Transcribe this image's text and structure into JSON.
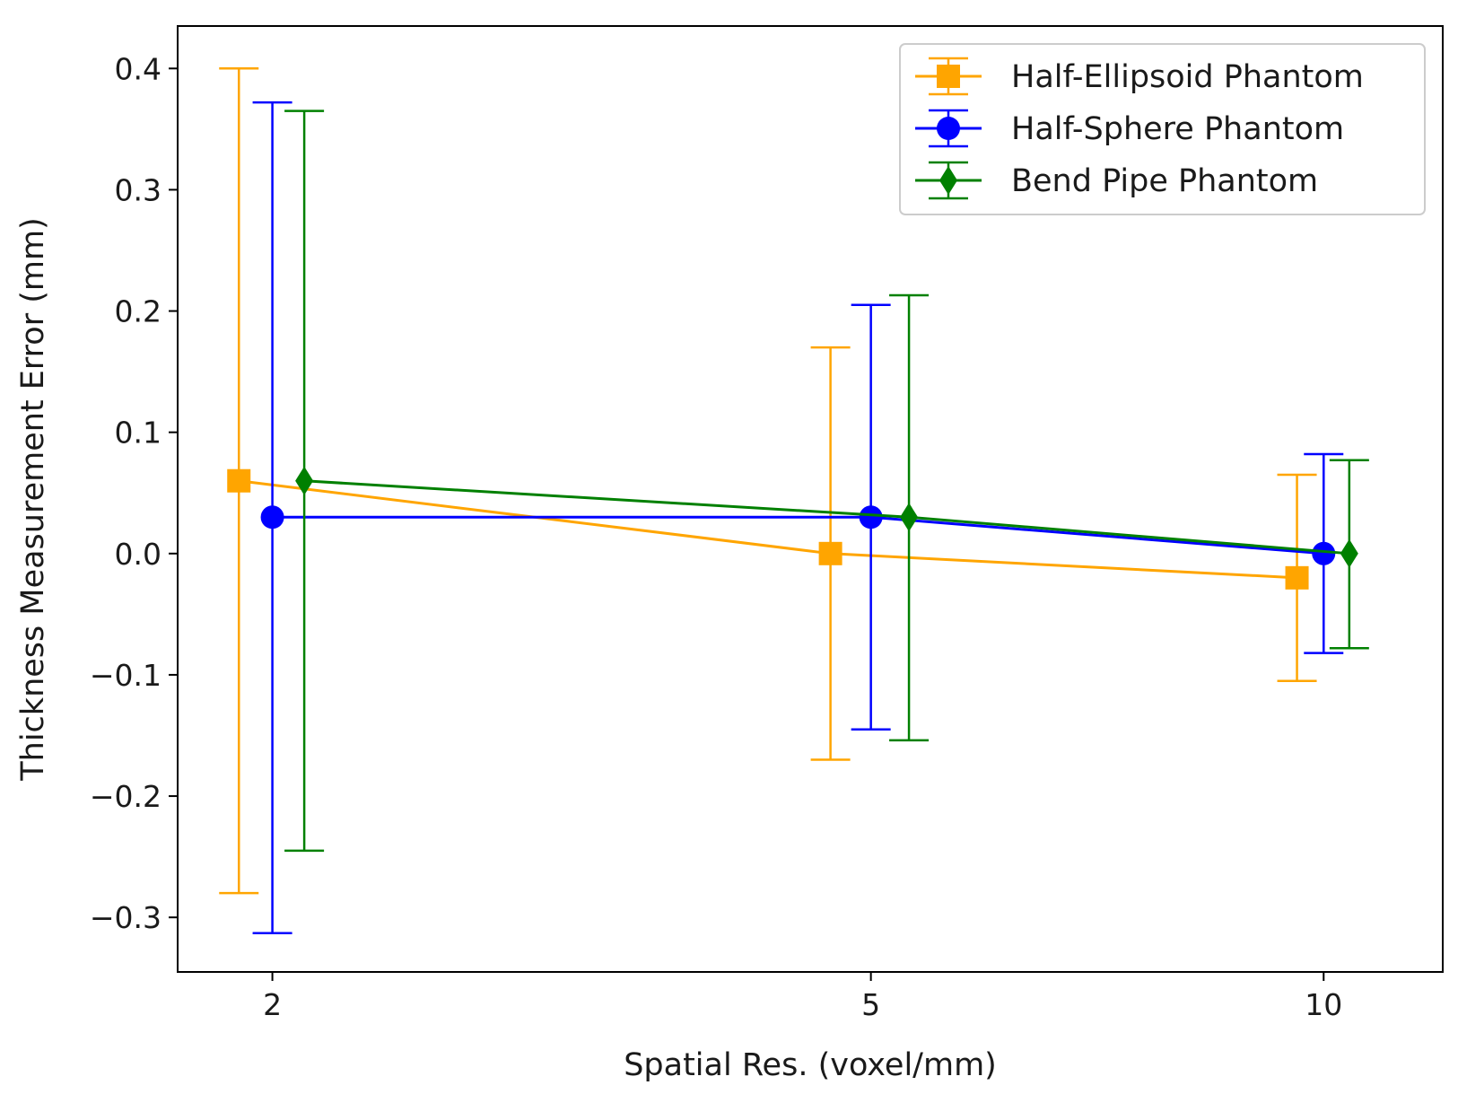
{
  "chart_data": {
    "type": "line",
    "xlabel": "Spatial Res. (voxel/mm)",
    "ylabel": "Thickness Measurement Error (mm)",
    "x_categories": [
      "2",
      "5",
      "10"
    ],
    "x_scale": "log",
    "xlim": [
      1.73,
      12.0
    ],
    "ylim": [
      -0.345,
      0.435
    ],
    "y_ticks": [
      -0.3,
      -0.2,
      -0.1,
      0.0,
      0.1,
      0.2,
      0.3,
      0.4
    ],
    "y_tick_labels": [
      "−0.3",
      "−0.2",
      "−0.1",
      "0.0",
      "0.1",
      "0.2",
      "0.3",
      "0.4"
    ],
    "grid": false,
    "legend_position": "top-right",
    "error_bars": true,
    "series": [
      {
        "name": "Half-Ellipsoid Phantom",
        "color": "#FFA500",
        "marker": "square",
        "x": [
          1.9,
          4.7,
          9.6
        ],
        "y": [
          0.06,
          0.0,
          -0.02
        ],
        "yerr_low": [
          -0.28,
          -0.17,
          -0.105
        ],
        "yerr_high": [
          0.4,
          0.17,
          0.065
        ]
      },
      {
        "name": "Half-Sphere Phantom",
        "color": "#0000FF",
        "marker": "circle",
        "x": [
          2.0,
          5.0,
          10.0
        ],
        "y": [
          0.03,
          0.03,
          0.0
        ],
        "yerr_low": [
          -0.313,
          -0.145,
          -0.082
        ],
        "yerr_high": [
          0.372,
          0.205,
          0.082
        ]
      },
      {
        "name": "Bend Pipe Phantom",
        "color": "#008000",
        "marker": "diamond",
        "x": [
          2.1,
          5.3,
          10.4
        ],
        "y": [
          0.06,
          0.03,
          0.0
        ],
        "yerr_low": [
          -0.245,
          -0.154,
          -0.078
        ],
        "yerr_high": [
          0.365,
          0.213,
          0.077
        ]
      }
    ]
  }
}
